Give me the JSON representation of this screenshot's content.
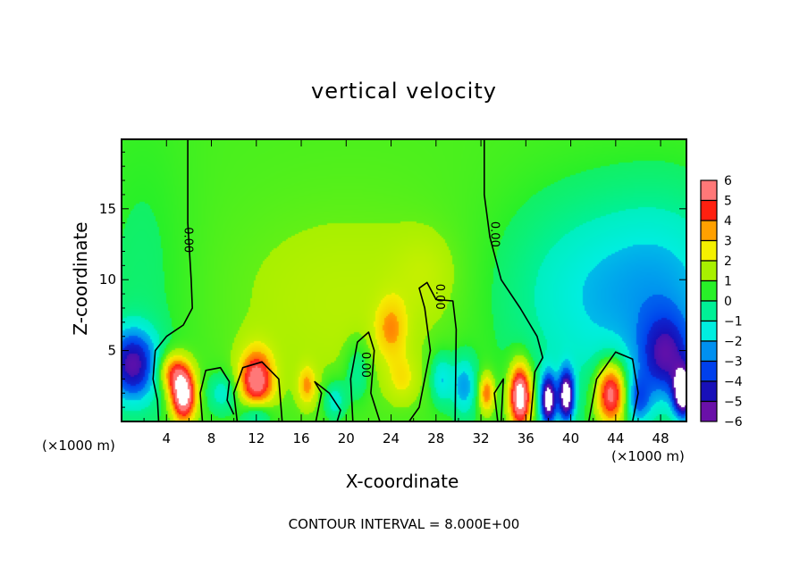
{
  "chart_data": {
    "type": "heatmap",
    "subtype": "filled-contour",
    "title": "vertical velocity",
    "xlabel": "X-coordinate",
    "ylabel": "Z-coordinate",
    "x_unit_label": "(×1000 m)",
    "z_unit_label": "(×1000 m)",
    "xlim": [
      0,
      50.3
    ],
    "ylim": [
      0,
      19.9
    ],
    "xticks": [
      4,
      8,
      12,
      16,
      20,
      24,
      28,
      32,
      36,
      40,
      44,
      48
    ],
    "yticks": [
      5,
      10,
      15
    ],
    "footer": "CONTOUR INTERVAL = 8.000E+00",
    "colorbar": {
      "levels": [
        -6,
        -5,
        -4,
        -3,
        -2,
        -1,
        0,
        1,
        2,
        3,
        4,
        5,
        6
      ],
      "labels": [
        "6",
        "5",
        "4",
        "3",
        "2",
        "1",
        "0",
        "−1",
        "−2",
        "−3",
        "−4",
        "−5",
        "−6"
      ],
      "colors": [
        "#6a10a8",
        "#1810b8",
        "#0040ec",
        "#0090f0",
        "#00eee0",
        "#00f096",
        "#28f028",
        "#a8f000",
        "#f4f000",
        "#ffa000",
        "#ff2010",
        "#ff7878"
      ],
      "over_color": "#ffffff",
      "under_color": "#ffffff"
    },
    "field_features": [
      {
        "x": 25,
        "z": 20,
        "sx": 40,
        "sz": 14,
        "amp": 0.35
      },
      {
        "x": 20,
        "z": 8,
        "sx": 8,
        "sz": 5,
        "amp": 0.9
      },
      {
        "x": 24,
        "z": 6.5,
        "sx": 1,
        "sz": 1.5,
        "amp": 2.2
      },
      {
        "x": 27,
        "z": 10.5,
        "sx": 2,
        "sz": 2,
        "amp": 0.8
      },
      {
        "x": 42,
        "z": 9,
        "sx": 6,
        "sz": 5,
        "amp": -2.3
      },
      {
        "x": 49,
        "z": 9,
        "sx": 4,
        "sz": 5,
        "amp": -1.8
      },
      {
        "x": 1,
        "z": 4,
        "sx": 1.6,
        "sz": 1.8,
        "amp": -5.5
      },
      {
        "x": 2,
        "z": 10,
        "sx": 3,
        "sz": 8,
        "amp": -0.7
      },
      {
        "x": 5.5,
        "z": 1.8,
        "sx": 0.8,
        "sz": 1.3,
        "amp": 6.6
      },
      {
        "x": 4.5,
        "z": 3.5,
        "sx": 1,
        "sz": 1,
        "amp": 3.5
      },
      {
        "x": 12,
        "z": 2.8,
        "sx": 1.1,
        "sz": 1.6,
        "amp": 5.2
      },
      {
        "x": 12,
        "z": 0.5,
        "sx": 1,
        "sz": 0.8,
        "amp": -3
      },
      {
        "x": 9,
        "z": 2,
        "sx": 1,
        "sz": 1,
        "amp": -2
      },
      {
        "x": 16.5,
        "z": 2.5,
        "sx": 0.6,
        "sz": 1,
        "amp": 2.5
      },
      {
        "x": 19,
        "z": 1.5,
        "sx": 0.7,
        "sz": 1,
        "amp": -2.2
      },
      {
        "x": 21,
        "z": 3.5,
        "sx": 0.8,
        "sz": 1.5,
        "amp": -1.8
      },
      {
        "x": 25,
        "z": 3,
        "sx": 1,
        "sz": 1.2,
        "amp": 1.5
      },
      {
        "x": 28.5,
        "z": 3,
        "sx": 0.7,
        "sz": 1.3,
        "amp": -2.5
      },
      {
        "x": 30.5,
        "z": 2.5,
        "sx": 0.8,
        "sz": 1.5,
        "amp": -3
      },
      {
        "x": 32.5,
        "z": 2,
        "sx": 0.5,
        "sz": 1,
        "amp": 3.5
      },
      {
        "x": 35.5,
        "z": 1.8,
        "sx": 0.7,
        "sz": 1.6,
        "amp": 7
      },
      {
        "x": 38,
        "z": 1.5,
        "sx": 0.5,
        "sz": 1.3,
        "amp": -7
      },
      {
        "x": 39.6,
        "z": 1.8,
        "sx": 0.5,
        "sz": 1.3,
        "amp": -7
      },
      {
        "x": 43.6,
        "z": 2,
        "sx": 1,
        "sz": 1.6,
        "amp": 6
      },
      {
        "x": 46,
        "z": 1.5,
        "sx": 0.8,
        "sz": 1.2,
        "amp": -3
      },
      {
        "x": 48.5,
        "z": 4.5,
        "sx": 1.6,
        "sz": 2,
        "amp": -4
      },
      {
        "x": 50,
        "z": 2,
        "sx": 0.6,
        "sz": 1.2,
        "amp": -7
      }
    ],
    "contours": [
      {
        "level": 0,
        "points": [
          [
            5.9,
            19.9
          ],
          [
            5.9,
            14
          ],
          [
            6.2,
            10
          ],
          [
            6.3,
            8
          ],
          [
            5.5,
            6.8
          ],
          [
            4,
            6
          ],
          [
            3,
            5
          ],
          [
            2.8,
            3
          ],
          [
            3.2,
            1.5
          ],
          [
            3.3,
            0
          ]
        ]
      },
      {
        "level": 0,
        "points": [
          [
            32.3,
            19.9
          ],
          [
            32.3,
            16
          ],
          [
            32.8,
            13
          ],
          [
            33.8,
            10
          ],
          [
            35.5,
            8
          ],
          [
            37,
            6
          ],
          [
            37.5,
            4.5
          ],
          [
            36.8,
            3.5
          ],
          [
            36.4,
            0
          ]
        ]
      },
      {
        "level": 0,
        "points": [
          [
            7.2,
            0
          ],
          [
            7,
            2
          ],
          [
            7.5,
            3.6
          ],
          [
            8.8,
            3.8
          ],
          [
            9.6,
            2.8
          ],
          [
            9.4,
            1.5
          ],
          [
            10,
            0.5
          ]
        ]
      },
      {
        "level": 0,
        "points": [
          [
            10.3,
            0
          ],
          [
            10,
            2
          ],
          [
            10.8,
            3.8
          ],
          [
            12.5,
            4.2
          ],
          [
            14,
            3
          ],
          [
            14.3,
            0
          ]
        ]
      },
      {
        "level": 0,
        "points": [
          [
            17.3,
            0
          ],
          [
            17.8,
            2
          ],
          [
            17.2,
            2.8
          ],
          [
            18.5,
            2
          ],
          [
            19.5,
            0.8
          ],
          [
            19.2,
            0
          ]
        ]
      },
      {
        "level": 0,
        "points": [
          [
            20.6,
            0
          ],
          [
            20.4,
            3
          ],
          [
            21,
            5.6
          ],
          [
            22,
            6.3
          ],
          [
            22.5,
            5
          ],
          [
            22.2,
            2
          ],
          [
            23,
            0
          ]
        ]
      },
      {
        "level": 0,
        "points": [
          [
            25.6,
            0
          ],
          [
            26.5,
            1
          ],
          [
            27,
            3
          ],
          [
            27.5,
            5
          ],
          [
            27,
            8
          ],
          [
            26.5,
            9.4
          ],
          [
            27.2,
            9.8
          ],
          [
            28,
            8.6
          ],
          [
            29.5,
            8.5
          ],
          [
            29.8,
            6.5
          ],
          [
            29.7,
            0
          ]
        ]
      },
      {
        "level": 0,
        "points": [
          [
            33.5,
            0
          ],
          [
            33.2,
            2
          ],
          [
            34,
            3
          ],
          [
            33.8,
            0
          ]
        ]
      },
      {
        "level": 0,
        "points": [
          [
            41.6,
            0
          ],
          [
            42.3,
            3
          ],
          [
            44,
            4.9
          ],
          [
            45.5,
            4.4
          ],
          [
            46,
            2
          ],
          [
            45.5,
            0
          ]
        ]
      }
    ],
    "contour_labels": [
      {
        "text": "0.00",
        "x": 5.9,
        "z": 12.8
      },
      {
        "text": "0.00",
        "x": 33.2,
        "z": 13.2
      },
      {
        "text": "0.00",
        "x": 21.7,
        "z": 4
      },
      {
        "text": "0.00",
        "x": 28.3,
        "z": 8.8
      }
    ]
  }
}
